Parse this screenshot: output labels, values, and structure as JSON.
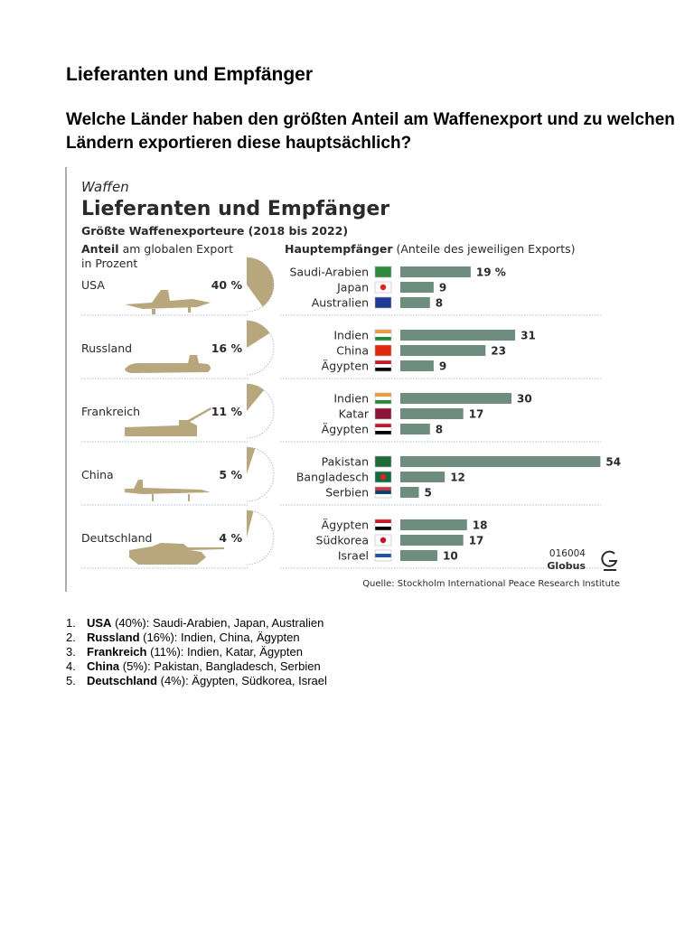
{
  "document": {
    "title": "Lieferanten und Empfänger",
    "question": "Welche Länder haben den größten Anteil am Waffenexport und zu welchen Ländern exportieren diese hauptsächlich?"
  },
  "infographic": {
    "kicker": "Waffen",
    "title": "Lieferanten und Empfänger",
    "subtitle": "Größte Waffenexporteure (2018 bis 2022)",
    "left_header_bold": "Anteil",
    "left_header_rest": " am globalen Export",
    "left_header_line2": "in Prozent",
    "right_header_bold": "Hauptempfänger",
    "right_header_rest": " (Anteile des jeweiligen Exports)",
    "code": "016004",
    "brand": "Globus",
    "source": "Quelle: Stockholm International Peace Research Institute",
    "colors": {
      "bar": "#6e8d7e",
      "pie": "#b8a67c",
      "text": "#2a2a2a"
    }
  },
  "chart_data": {
    "type": "bar",
    "title": "Lieferanten und Empfänger",
    "subtitle": "Größte Waffenexporteure (2018 bis 2022)",
    "exporters": [
      {
        "name": "USA",
        "share": 40,
        "share_label": "40 %",
        "vehicle_icon": "fighter-jet-icon",
        "recipients": [
          {
            "name": "Saudi-Arabien",
            "value": 19,
            "label": "19 %",
            "flag": "saudi-arabia"
          },
          {
            "name": "Japan",
            "value": 9,
            "label": "9",
            "flag": "japan"
          },
          {
            "name": "Australien",
            "value": 8,
            "label": "8",
            "flag": "australia"
          }
        ]
      },
      {
        "name": "Russland",
        "share": 16,
        "share_label": "16 %",
        "vehicle_icon": "submarine-icon",
        "recipients": [
          {
            "name": "Indien",
            "value": 31,
            "label": "31",
            "flag": "india"
          },
          {
            "name": "China",
            "value": 23,
            "label": "23",
            "flag": "china"
          },
          {
            "name": "Ägypten",
            "value": 9,
            "label": "9",
            "flag": "egypt"
          }
        ]
      },
      {
        "name": "Frankreich",
        "share": 11,
        "share_label": "11 %",
        "vehicle_icon": "artillery-truck-icon",
        "recipients": [
          {
            "name": "Indien",
            "value": 30,
            "label": "30",
            "flag": "india"
          },
          {
            "name": "Katar",
            "value": 17,
            "label": "17",
            "flag": "qatar"
          },
          {
            "name": "Ägypten",
            "value": 8,
            "label": "8",
            "flag": "egypt"
          }
        ]
      },
      {
        "name": "China",
        "share": 5,
        "share_label": "5 %",
        "vehicle_icon": "drone-icon",
        "recipients": [
          {
            "name": "Pakistan",
            "value": 54,
            "label": "54",
            "flag": "pakistan"
          },
          {
            "name": "Bangladesch",
            "value": 12,
            "label": "12",
            "flag": "bangladesh"
          },
          {
            "name": "Serbien",
            "value": 5,
            "label": "5",
            "flag": "serbia"
          }
        ]
      },
      {
        "name": "Deutschland",
        "share": 4,
        "share_label": "4 %",
        "vehicle_icon": "tank-icon",
        "recipients": [
          {
            "name": "Ägypten",
            "value": 18,
            "label": "18",
            "flag": "egypt"
          },
          {
            "name": "Südkorea",
            "value": 17,
            "label": "17",
            "flag": "south-korea"
          },
          {
            "name": "Israel",
            "value": 10,
            "label": "10",
            "flag": "israel"
          }
        ]
      }
    ]
  },
  "list": [
    {
      "num": "1.",
      "bold": "USA",
      "rest": " (40%): Saudi-Arabien, Japan, Australien"
    },
    {
      "num": "2.",
      "bold": "Russland",
      "rest": " (16%): Indien, China, Ägypten"
    },
    {
      "num": "3.",
      "bold": "Frankreich",
      "rest": " (11%): Indien, Katar, Ägypten"
    },
    {
      "num": "4.",
      "bold": "China",
      "rest": " (5%): Pakistan, Bangladesch, Serbien"
    },
    {
      "num": "5.",
      "bold": "Deutschland",
      "rest": " (4%): Ägypten, Südkorea, Israel"
    }
  ]
}
